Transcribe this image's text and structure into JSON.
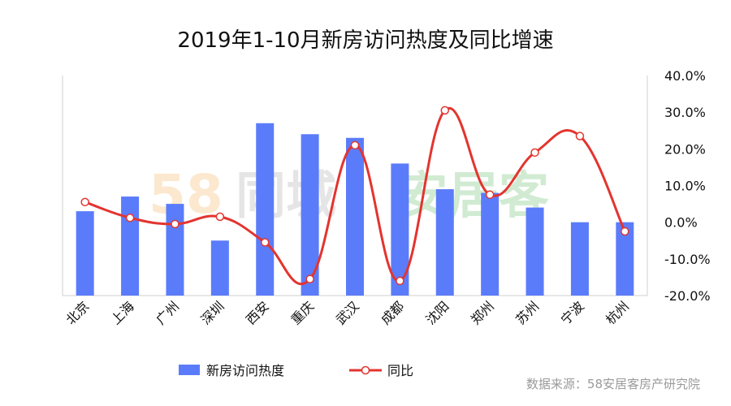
{
  "chart_data": {
    "type": "bar+line",
    "title": "2019年1-10月新房访问热度及同比增速",
    "categories": [
      "北京",
      "上海",
      "广州",
      "深圳",
      "西安",
      "重庆",
      "武汉",
      "成都",
      "沈阳",
      "郑州",
      "苏州",
      "宁波",
      "杭州"
    ],
    "series": [
      {
        "name": "新房访问热度",
        "type": "bar",
        "axis": "left",
        "color": "#5B7CFA",
        "values": [
          23,
          27,
          25,
          15,
          47,
          44,
          43,
          36,
          29,
          28,
          24,
          20,
          20
        ]
      },
      {
        "name": "同比",
        "type": "line",
        "axis": "right",
        "color": "#E3342F",
        "values": [
          5.5,
          1.2,
          -0.5,
          1.5,
          -5.5,
          -15.5,
          21.0,
          -16.0,
          30.5,
          7.5,
          19.0,
          23.5,
          -2.5
        ]
      }
    ],
    "y_right": {
      "min": -20,
      "max": 40,
      "ticks": [
        "40.0%",
        "30.0%",
        "20.0%",
        "10.0%",
        "0.0%",
        "-10.0%",
        "-20.0%"
      ]
    },
    "y_left": {
      "min": 0,
      "max": 60
    },
    "legend_position": "bottom",
    "grid": false
  },
  "source_note": "数据来源：58安居客房产研究院",
  "watermark": {
    "part1": "58",
    "part2": "同城",
    "part3": "安居客"
  }
}
